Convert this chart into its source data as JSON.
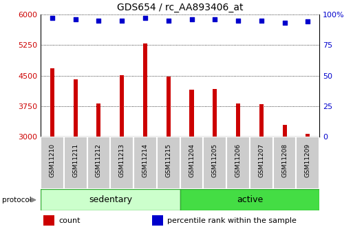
{
  "title": "GDS654 / rc_AA893406_at",
  "samples": [
    "GSM11210",
    "GSM11211",
    "GSM11212",
    "GSM11213",
    "GSM11214",
    "GSM11215",
    "GSM11204",
    "GSM11205",
    "GSM11206",
    "GSM11207",
    "GSM11208",
    "GSM11209"
  ],
  "counts": [
    4680,
    4400,
    3820,
    4510,
    5280,
    4480,
    4150,
    4170,
    3820,
    3800,
    3300,
    3080
  ],
  "percentiles": [
    97,
    96,
    95,
    95,
    97,
    95,
    96,
    96,
    95,
    95,
    93,
    94
  ],
  "ylim_left": [
    3000,
    6000
  ],
  "yticks_left": [
    3000,
    3750,
    4500,
    5250,
    6000
  ],
  "yticks_right": [
    0,
    25,
    50,
    75,
    100
  ],
  "pct_data_min": 0,
  "pct_data_max": 100,
  "bar_color": "#cc0000",
  "dot_color": "#0000cc",
  "bar_width": 0.18,
  "groups": [
    {
      "label": "sedentary",
      "start": 0,
      "end": 6
    },
    {
      "label": "active",
      "start": 6,
      "end": 12
    }
  ],
  "group_colors": [
    "#ccffcc",
    "#44dd44"
  ],
  "xlabel_row_color": "#cccccc",
  "title_fontsize": 10,
  "tick_fontsize": 8,
  "label_fontsize": 9,
  "legend_fontsize": 8,
  "protocol_label": "protocol",
  "legend_items": [
    {
      "label": "count",
      "color": "#cc0000"
    },
    {
      "label": "percentile rank within the sample",
      "color": "#0000cc"
    }
  ]
}
